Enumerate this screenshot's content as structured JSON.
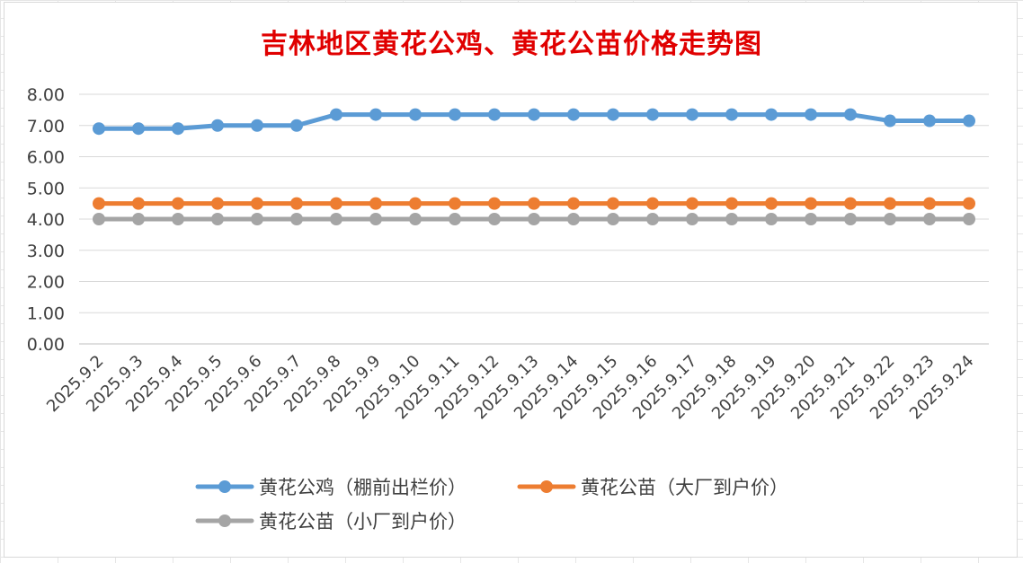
{
  "chart_data": {
    "type": "line",
    "title": "吉林地区黄花公鸡、黄花公苗价格走势图",
    "xlabel": "",
    "ylabel": "",
    "ylim": [
      0,
      8
    ],
    "yticks": [
      "0.00",
      "1.00",
      "2.00",
      "3.00",
      "4.00",
      "5.00",
      "6.00",
      "7.00",
      "8.00"
    ],
    "categories": [
      "2025.9.2",
      "2025.9.3",
      "2025.9.4",
      "2025.9.5",
      "2025.9.6",
      "2025.9.7",
      "2025.9.8",
      "2025.9.9",
      "2025.9.10",
      "2025.9.11",
      "2025.9.12",
      "2025.9.13",
      "2025.9.14",
      "2025.9.15",
      "2025.9.16",
      "2025.9.17",
      "2025.9.18",
      "2025.9.19",
      "2025.9.20",
      "2025.9.21",
      "2025.9.22",
      "2025.9.23",
      "2025.9.24"
    ],
    "grid": true,
    "legend_position": "bottom",
    "series": [
      {
        "name": "黄花公鸡（棚前出栏价）",
        "color": "#5b9bd5",
        "values": [
          6.9,
          6.9,
          6.9,
          7.0,
          7.0,
          7.0,
          7.35,
          7.35,
          7.35,
          7.35,
          7.35,
          7.35,
          7.35,
          7.35,
          7.35,
          7.35,
          7.35,
          7.35,
          7.35,
          7.35,
          7.15,
          7.15,
          7.15
        ]
      },
      {
        "name": "黄花公苗（大厂到户价）",
        "color": "#ed7d31",
        "values": [
          4.5,
          4.5,
          4.5,
          4.5,
          4.5,
          4.5,
          4.5,
          4.5,
          4.5,
          4.5,
          4.5,
          4.5,
          4.5,
          4.5,
          4.5,
          4.5,
          4.5,
          4.5,
          4.5,
          4.5,
          4.5,
          4.5,
          4.5
        ]
      },
      {
        "name": "黄花公苗（小厂到户价）",
        "color": "#a5a5a5",
        "values": [
          4.0,
          4.0,
          4.0,
          4.0,
          4.0,
          4.0,
          4.0,
          4.0,
          4.0,
          4.0,
          4.0,
          4.0,
          4.0,
          4.0,
          4.0,
          4.0,
          4.0,
          4.0,
          4.0,
          4.0,
          4.0,
          4.0,
          4.0
        ]
      }
    ]
  }
}
